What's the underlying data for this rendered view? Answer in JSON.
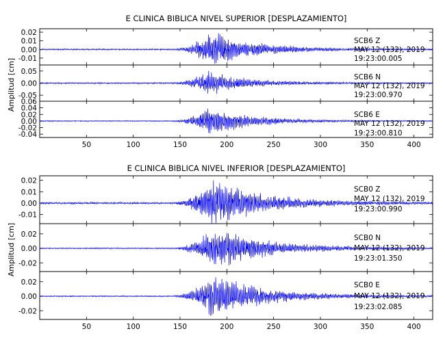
{
  "chart_data": [
    {
      "type": "line",
      "title": "E CLINICA BIBLICA NIVEL SUPERIOR [DESPLAZAMIENTO]",
      "ylabel": "Amplitud [cm]",
      "xlim": [
        0,
        420
      ],
      "x_ticks": [
        "50",
        "100",
        "150",
        "200",
        "250",
        "300",
        "350",
        "400"
      ],
      "series": [
        {
          "name": "SCB6 Z",
          "info": [
            "SCB6 Z",
            "MAY 12 (132), 2019",
            "19:23:00.005"
          ],
          "ylim": [
            -0.018,
            0.024
          ],
          "y_ticks": [
            "0.02",
            "0.01",
            "0.00",
            "-0.01"
          ],
          "envelope": {
            "noise": 0.0008,
            "onset": 140,
            "peak": 0.018,
            "peak_time": 183,
            "decay": 48,
            "seed": 11
          },
          "color": "#0000ee"
        },
        {
          "name": "SCB6 N",
          "info": [
            "SCB6 N",
            "MAY 12 (132), 2019",
            "19:23:00.970"
          ],
          "ylim": [
            -0.075,
            0.075
          ],
          "y_ticks": [
            "0.05",
            "0.00",
            "-0.05"
          ],
          "envelope": {
            "noise": 0.003,
            "onset": 140,
            "peak": 0.045,
            "peak_time": 180,
            "decay": 40,
            "seed": 23
          },
          "color": "#0000ee"
        },
        {
          "name": "SCB6 E",
          "info": [
            "SCB6 E",
            "MAY 12 (132), 2019",
            "19:23:00.810"
          ],
          "ylim": [
            -0.05,
            0.06
          ],
          "y_ticks": [
            "0.06",
            "0.04",
            "0.02",
            "0.00",
            "-0.02",
            "-0.04"
          ],
          "envelope": {
            "noise": 0.0015,
            "onset": 140,
            "peak": 0.04,
            "peak_time": 182,
            "decay": 45,
            "seed": 37
          },
          "color": "#0000ee"
        }
      ]
    },
    {
      "type": "line",
      "title": "E CLINICA BIBLICA NIVEL INFERIOR [DESPLAZAMIENTO]",
      "ylabel": "Amplitud [cm]",
      "xlim": [
        0,
        420
      ],
      "x_ticks": [
        "50",
        "100",
        "150",
        "200",
        "250",
        "300",
        "350",
        "400"
      ],
      "series": [
        {
          "name": "SCB0 Z",
          "info": [
            "SCB0 Z",
            "MAY 12 (132), 2019",
            "19:23:00.990"
          ],
          "ylim": [
            -0.018,
            0.024
          ],
          "y_ticks": [
            "0.02",
            "0.01",
            "0.00",
            "-0.01"
          ],
          "envelope": {
            "noise": 0.0008,
            "onset": 140,
            "peak": 0.02,
            "peak_time": 185,
            "decay": 55,
            "seed": 51
          },
          "color": "#0000ee"
        },
        {
          "name": "SCB0 N",
          "info": [
            "SCB0 N",
            "MAY 12 (132), 2019",
            "19:23:01.350"
          ],
          "ylim": [
            -0.032,
            0.034
          ],
          "y_ticks": [
            "0.02",
            "0.00",
            "-0.02"
          ],
          "envelope": {
            "noise": 0.0008,
            "onset": 140,
            "peak": 0.027,
            "peak_time": 188,
            "decay": 55,
            "seed": 67
          },
          "color": "#0000ee"
        },
        {
          "name": "SCB0 E",
          "info": [
            "SCB0 E",
            "MAY 12 (132), 2019",
            "19:23:02.085"
          ],
          "ylim": [
            -0.032,
            0.034
          ],
          "y_ticks": [
            "0.02",
            "0.00",
            "-0.02"
          ],
          "envelope": {
            "noise": 0.0008,
            "onset": 140,
            "peak": 0.027,
            "peak_time": 185,
            "decay": 55,
            "seed": 79
          },
          "color": "#0000ee"
        }
      ]
    }
  ]
}
